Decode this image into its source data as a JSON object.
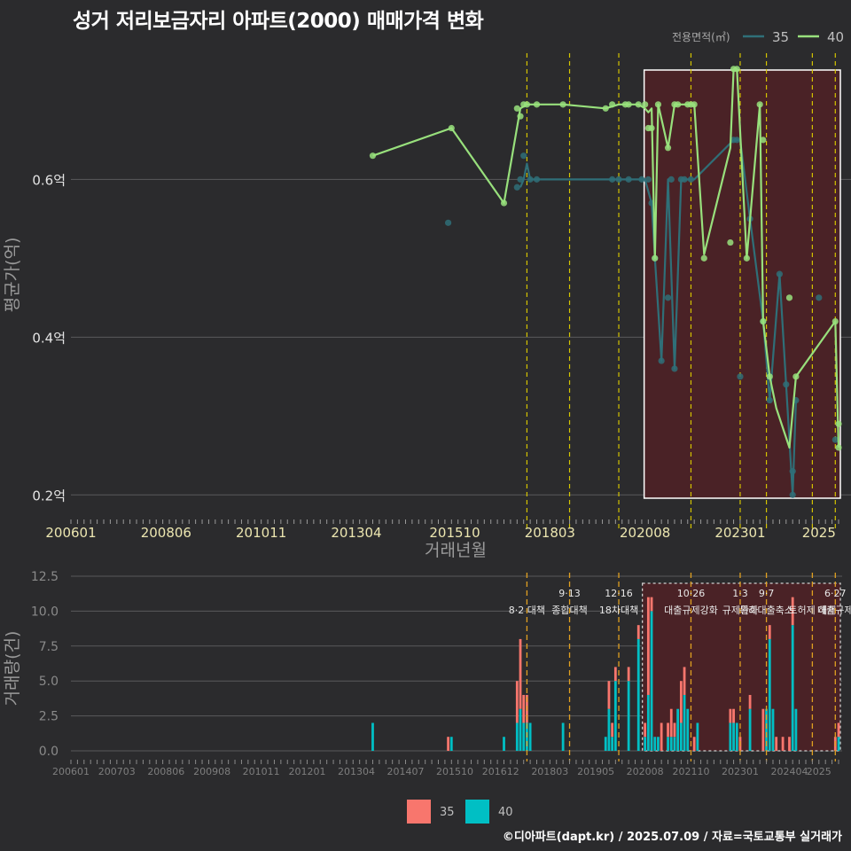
{
  "title": "성거 저리보금자리 아파트(2000) 매매가격 변화",
  "credit": "©디아파트(dapt.kr) / 2025.07.09 / 자료=국토교통부 실거래가",
  "colors": {
    "background": "#2b2b2d",
    "grid": "#5a5a5c",
    "series35": "#2f6f78",
    "series40": "#98e07c",
    "highlight_fill": "#4a2226",
    "bar35": "#f8766d",
    "bar40": "#00bfc4",
    "policy_line": "#d4c400",
    "policy_line_vol": "#e0a020"
  },
  "chart_data": [
    {
      "type": "line",
      "title": "성거 저리보금자리 아파트(2000) 매매가격 변화",
      "xlabel": "거래년월",
      "ylabel": "평균가(억)",
      "x_ticks": [
        "200601",
        "200806",
        "201011",
        "201304",
        "201510",
        "201803",
        "202008",
        "202301",
        "2025"
      ],
      "y_ticks": [
        "0.2억",
        "0.4억",
        "0.6억"
      ],
      "y_tick_values": [
        0.2,
        0.4,
        0.6
      ],
      "xlim": [
        "2006-01",
        "2025-07"
      ],
      "ylim": [
        0.17,
        0.76
      ],
      "grid": true,
      "legend": {
        "title": "전용면적(㎡)",
        "entries": [
          "35",
          "40"
        ],
        "position": "top-right"
      },
      "highlight_range": [
        "2020-08",
        "2025-07"
      ],
      "policy_dates": [
        "2017-08",
        "2018-09",
        "2019-12",
        "2021-10",
        "2023-01",
        "2023-09",
        "2024-11",
        "2025-06"
      ],
      "series": [
        {
          "name": "35",
          "line": [
            [
              "2017-06",
              0.59
            ],
            [
              "2017-07",
              0.6
            ],
            [
              "2017-08",
              0.62
            ],
            [
              "2017-09",
              0.6
            ],
            [
              "2019-11",
              0.6
            ],
            [
              "2020-02",
              0.6
            ],
            [
              "2020-05",
              0.6
            ],
            [
              "2020-08",
              0.6
            ],
            [
              "2020-10",
              0.57
            ],
            [
              "2020-11",
              0.5
            ],
            [
              "2021-01",
              0.37
            ],
            [
              "2021-03",
              0.6
            ],
            [
              "2021-05",
              0.36
            ],
            [
              "2021-07",
              0.6
            ],
            [
              "2021-09",
              0.6
            ],
            [
              "2021-11",
              0.6
            ],
            [
              "2022-11",
              0.65
            ],
            [
              "2023-01",
              0.65
            ],
            [
              "2023-04",
              0.55
            ],
            [
              "2023-08",
              0.42
            ],
            [
              "2023-10",
              0.32
            ],
            [
              "2024-01",
              0.48
            ],
            [
              "2024-03",
              0.34
            ],
            [
              "2024-05",
              0.2
            ],
            [
              "2024-06",
              0.32
            ]
          ],
          "points": [
            [
              "2015-08",
              0.545
            ],
            [
              "2017-05",
              0.59
            ],
            [
              "2017-06",
              0.6
            ],
            [
              "2017-07",
              0.63
            ],
            [
              "2017-09",
              0.6
            ],
            [
              "2017-11",
              0.6
            ],
            [
              "2019-10",
              0.6
            ],
            [
              "2019-12",
              0.6
            ],
            [
              "2020-03",
              0.6
            ],
            [
              "2020-07",
              0.6
            ],
            [
              "2020-09",
              0.6
            ],
            [
              "2020-10",
              0.57
            ],
            [
              "2020-11",
              0.5
            ],
            [
              "2021-01",
              0.37
            ],
            [
              "2021-03",
              0.45
            ],
            [
              "2021-04",
              0.6
            ],
            [
              "2021-05",
              0.36
            ],
            [
              "2021-07",
              0.6
            ],
            [
              "2021-08",
              0.6
            ],
            [
              "2021-10",
              0.6
            ],
            [
              "2022-11",
              0.65
            ],
            [
              "2022-12",
              0.65
            ],
            [
              "2023-01",
              0.35
            ],
            [
              "2023-04",
              0.55
            ],
            [
              "2023-08",
              0.42
            ],
            [
              "2023-10",
              0.32
            ],
            [
              "2024-01",
              0.48
            ],
            [
              "2024-03",
              0.34
            ],
            [
              "2024-05",
              0.23
            ],
            [
              "2024-05",
              0.2
            ],
            [
              "2024-06",
              0.32
            ],
            [
              "2025-01",
              0.45
            ],
            [
              "2025-06",
              0.27
            ]
          ]
        },
        {
          "name": "40",
          "line": [
            [
              "2013-09",
              0.63
            ],
            [
              "2015-09",
              0.665
            ],
            [
              "2017-01",
              0.57
            ],
            [
              "2017-06",
              0.69
            ],
            [
              "2017-08",
              0.695
            ],
            [
              "2017-11",
              0.695
            ],
            [
              "2018-07",
              0.695
            ],
            [
              "2019-08",
              0.69
            ],
            [
              "2019-12",
              0.695
            ],
            [
              "2020-06",
              0.695
            ],
            [
              "2020-08",
              0.69
            ],
            [
              "2020-09",
              0.685
            ],
            [
              "2020-10",
              0.69
            ],
            [
              "2020-11",
              0.5
            ],
            [
              "2020-12",
              0.695
            ],
            [
              "2021-03",
              0.64
            ],
            [
              "2021-05",
              0.695
            ],
            [
              "2021-09",
              0.695
            ],
            [
              "2021-11",
              0.695
            ],
            [
              "2022-02",
              0.505
            ],
            [
              "2022-10",
              0.64
            ],
            [
              "2022-11",
              0.74
            ],
            [
              "2022-12",
              0.74
            ],
            [
              "2023-03",
              0.5
            ],
            [
              "2023-07",
              0.695
            ],
            [
              "2023-08",
              0.42
            ],
            [
              "2023-10",
              0.35
            ],
            [
              "2023-12",
              0.31
            ],
            [
              "2024-04",
              0.26
            ],
            [
              "2024-06",
              0.35
            ],
            [
              "2025-06",
              0.42
            ],
            [
              "2025-07",
              0.26
            ]
          ],
          "points": [
            [
              "2013-09",
              0.63
            ],
            [
              "2015-09",
              0.665
            ],
            [
              "2017-01",
              0.57
            ],
            [
              "2017-05",
              0.69
            ],
            [
              "2017-06",
              0.68
            ],
            [
              "2017-07",
              0.695
            ],
            [
              "2017-08",
              0.695
            ],
            [
              "2017-11",
              0.695
            ],
            [
              "2018-07",
              0.695
            ],
            [
              "2019-08",
              0.69
            ],
            [
              "2019-10",
              0.695
            ],
            [
              "2020-02",
              0.695
            ],
            [
              "2020-03",
              0.695
            ],
            [
              "2020-06",
              0.695
            ],
            [
              "2020-08",
              0.695
            ],
            [
              "2020-09",
              0.665
            ],
            [
              "2020-10",
              0.665
            ],
            [
              "2020-11",
              0.5
            ],
            [
              "2020-12",
              0.695
            ],
            [
              "2021-03",
              0.64
            ],
            [
              "2021-05",
              0.695
            ],
            [
              "2021-06",
              0.695
            ],
            [
              "2021-09",
              0.695
            ],
            [
              "2021-10",
              0.695
            ],
            [
              "2021-11",
              0.695
            ],
            [
              "2022-02",
              0.5
            ],
            [
              "2022-10",
              0.52
            ],
            [
              "2022-11",
              0.74
            ],
            [
              "2022-12",
              0.74
            ],
            [
              "2023-03",
              0.5
            ],
            [
              "2023-07",
              0.695
            ],
            [
              "2023-08",
              0.65
            ],
            [
              "2023-08",
              0.42
            ],
            [
              "2023-10",
              0.35
            ],
            [
              "2024-04",
              0.45
            ],
            [
              "2024-06",
              0.35
            ],
            [
              "2025-06",
              0.42
            ],
            [
              "2025-07",
              0.29
            ],
            [
              "2025-07",
              0.26
            ]
          ]
        }
      ]
    },
    {
      "type": "bar",
      "ylabel": "거래량(건)",
      "x_ticks": [
        "200601",
        "200703",
        "200806",
        "200908",
        "201011",
        "201201",
        "201304",
        "201407",
        "201510",
        "201612",
        "201803",
        "201905",
        "202008",
        "202110",
        "202301",
        "202404",
        "2025"
      ],
      "y_ticks": [
        "0.0",
        "2.5",
        "5.0",
        "7.5",
        "10.0",
        "12.5"
      ],
      "y_tick_values": [
        0,
        2.5,
        5,
        7.5,
        10,
        12.5
      ],
      "ylim": [
        0,
        12.5
      ],
      "stacked": true,
      "highlight_range": [
        "2020-08",
        "2025-07"
      ],
      "legend": {
        "entries": [
          "35",
          "40"
        ],
        "position": "bottom"
      },
      "policy_events": [
        {
          "date": "2017-08",
          "label_top": "",
          "label_bottom": "8·2 대책"
        },
        {
          "date": "2018-09",
          "label_top": "9·13",
          "label_bottom": "종합대책"
        },
        {
          "date": "2019-12",
          "label_top": "12·16",
          "label_bottom": "18차대책"
        },
        {
          "date": "2021-10",
          "label_top": "10·26",
          "label_bottom": "대출규제강화"
        },
        {
          "date": "2023-01",
          "label_top": "1·3",
          "label_bottom": "규제완화"
        },
        {
          "date": "2023-09",
          "label_top": "9·7",
          "label_bottom": "특례대출축소"
        },
        {
          "date": "2024-11",
          "label_top": "",
          "label_bottom": "토허제 해제"
        },
        {
          "date": "2025-06",
          "label_top": "6·27",
          "label_bottom": "대출규제"
        }
      ],
      "series": [
        {
          "name": "35",
          "values": [
            [
              "2015-08",
              1
            ],
            [
              "2017-05",
              3
            ],
            [
              "2017-06",
              5
            ],
            [
              "2017-07",
              2
            ],
            [
              "2017-08",
              2
            ],
            [
              "2019-09",
              2
            ],
            [
              "2019-10",
              1
            ],
            [
              "2019-11",
              1
            ],
            [
              "2020-03",
              1
            ],
            [
              "2020-06",
              1
            ],
            [
              "2020-08",
              1
            ],
            [
              "2020-09",
              7
            ],
            [
              "2020-10",
              1
            ],
            [
              "2020-11",
              0
            ],
            [
              "2021-01",
              2
            ],
            [
              "2021-03",
              1
            ],
            [
              "2021-04",
              2
            ],
            [
              "2021-05",
              1
            ],
            [
              "2021-07",
              3
            ],
            [
              "2021-08",
              2
            ],
            [
              "2021-11",
              1
            ],
            [
              "2022-10",
              1
            ],
            [
              "2022-11",
              1
            ],
            [
              "2023-01",
              1
            ],
            [
              "2023-04",
              1
            ],
            [
              "2023-08",
              3
            ],
            [
              "2023-10",
              1
            ],
            [
              "2023-12",
              1
            ],
            [
              "2024-02",
              1
            ],
            [
              "2024-04",
              1
            ],
            [
              "2024-05",
              2
            ],
            [
              "2025-06",
              1
            ],
            [
              "2025-07",
              1
            ]
          ]
        },
        {
          "name": "40",
          "values": [
            [
              "2013-09",
              2
            ],
            [
              "2015-09",
              1
            ],
            [
              "2017-01",
              1
            ],
            [
              "2017-05",
              2
            ],
            [
              "2017-06",
              3
            ],
            [
              "2017-07",
              2
            ],
            [
              "2017-08",
              2
            ],
            [
              "2017-09",
              2
            ],
            [
              "2018-07",
              2
            ],
            [
              "2019-08",
              1
            ],
            [
              "2019-09",
              3
            ],
            [
              "2019-10",
              1
            ],
            [
              "2019-11",
              5
            ],
            [
              "2020-03",
              5
            ],
            [
              "2020-06",
              8
            ],
            [
              "2020-08",
              1
            ],
            [
              "2020-09",
              4
            ],
            [
              "2020-10",
              10
            ],
            [
              "2020-11",
              1
            ],
            [
              "2020-12",
              1
            ],
            [
              "2021-03",
              1
            ],
            [
              "2021-04",
              1
            ],
            [
              "2021-05",
              1
            ],
            [
              "2021-06",
              3
            ],
            [
              "2021-07",
              2
            ],
            [
              "2021-08",
              4
            ],
            [
              "2021-09",
              3
            ],
            [
              "2021-12",
              2
            ],
            [
              "2022-10",
              2
            ],
            [
              "2022-11",
              2
            ],
            [
              "2022-12",
              2
            ],
            [
              "2023-04",
              3
            ],
            [
              "2023-09",
              3
            ],
            [
              "2023-10",
              8
            ],
            [
              "2023-11",
              3
            ],
            [
              "2024-05",
              9
            ],
            [
              "2024-06",
              3
            ],
            [
              "2025-07",
              1
            ]
          ]
        }
      ]
    }
  ]
}
